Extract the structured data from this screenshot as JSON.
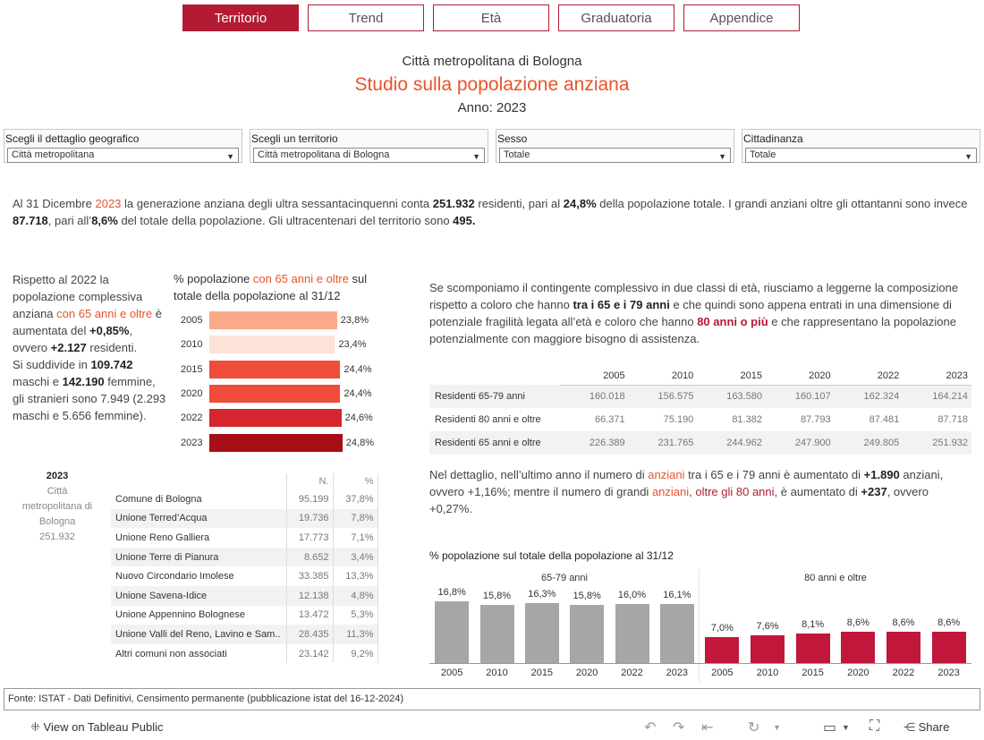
{
  "tabs": [
    {
      "label": "Territorio",
      "active": true
    },
    {
      "label": "Trend",
      "active": false
    },
    {
      "label": "Età",
      "active": false
    },
    {
      "label": "Graduatoria",
      "active": false
    },
    {
      "label": "Appendice",
      "active": false
    }
  ],
  "header": {
    "org": "Città metropolitana di Bologna",
    "title": "Studio sulla popolazione anziana",
    "year_label": "Anno: 2023"
  },
  "filters": [
    {
      "label": "Scegli il dettaglio geografico",
      "value": "Città metropolitana"
    },
    {
      "label": "Scegli un territorio",
      "value": "Città metropolitana di Bologna"
    },
    {
      "label": "Sesso",
      "value": "Totale"
    },
    {
      "label": "Cittadinanza",
      "value": "Totale"
    }
  ],
  "intro": {
    "t1": "Al 31 Dicembre ",
    "year": "2023",
    "t2": " la generazione anziana degli ultra sessantacinquenni conta ",
    "n1": "251.932",
    "t3": " residenti, pari al ",
    "p1": "24,8%",
    "t4": " della popolazione  totale. I grandi anziani oltre gli ottantanni sono invece ",
    "n2": "87.718",
    "t5": ", pari all’",
    "p2": "8,6%",
    "t6": " del totale della popolazione. Gli ultracentenari del territorio sono ",
    "n3": "495."
  },
  "left_text": {
    "a": "Rispetto al 2022 la popolazione complessiva anziana ",
    "b": "con 65 anni e oltre",
    "c": " è aumentata del ",
    "d": "+0,85%",
    "e": ", ovvero ",
    "f": "+2.127",
    "g": " residenti.",
    "h": "Si suddivide in ",
    "i": "109.742",
    "j": " maschi e ",
    "k": "142.190",
    "l": " femmine, gli stranieri sono 7.949 (2.293 maschi e 5.656 femmine)."
  },
  "right_text": {
    "a": "Se scomponiamo il contingente complessivo in due classi di età, riusciamo a leggerne la composizione rispetto a coloro che hanno ",
    "b": "tra i 65 e i 79 anni",
    "c": " e che quindi sono appena entrati in una dimensione di potenziale fragilità legata all’età e coloro che hanno ",
    "d": "80 anni o più",
    "e": " e che rappresentano la popolazione potenzialmente con maggiore bisogno di assistenza."
  },
  "detail_text": {
    "a": "Nel dettaglio, nell’ultimo anno il numero di ",
    "b": "anziani",
    "c": " tra i 65 e i 79 anni",
    "d": " è aumentato di ",
    "e": "+1.890",
    "f": " anziani, ovvero +1,16%; mentre il numero di grandi ",
    "g": "anziani",
    "h": ", oltre gli 80 anni",
    "i": ", è aumentato di ",
    "j": "+237",
    "k": ", ovvero +0,27%."
  },
  "residents_table": {
    "years": [
      "2005",
      "2010",
      "2015",
      "2020",
      "2022",
      "2023"
    ],
    "rows": [
      {
        "label": "Residenti 65-79 anni",
        "values": [
          "160.018",
          "156.575",
          "163.580",
          "160.107",
          "162.324",
          "164.214"
        ]
      },
      {
        "label": "Residenti 80 anni e oltre",
        "values": [
          "66.371",
          "75.190",
          "81.382",
          "87.793",
          "87.481",
          "87.718"
        ]
      },
      {
        "label": "Residenti 65 anni e oltre",
        "values": [
          "226.389",
          "231.765",
          "244.962",
          "247.900",
          "249.805",
          "251.932"
        ]
      }
    ]
  },
  "rank_table": {
    "year": "2023",
    "territory": "Città metropolitana di Bologna",
    "total": "251.932",
    "col_n": "N.",
    "col_p": "%",
    "rows": [
      {
        "name": "Comune di Bologna",
        "n": "95.199",
        "p": "37,8%"
      },
      {
        "name": "Unione Terred’Acqua",
        "n": "19.736",
        "p": "7,8%"
      },
      {
        "name": "Unione Reno Galliera",
        "n": "17.773",
        "p": "7,1%"
      },
      {
        "name": "Unione Terre di Pianura",
        "n": "8.652",
        "p": "3,4%"
      },
      {
        "name": "Nuovo Circondario Imolese",
        "n": "33.385",
        "p": "13,3%"
      },
      {
        "name": "Unione Savena-Idice",
        "n": "12.138",
        "p": "4,8%"
      },
      {
        "name": "Unione Appennino Bolognese",
        "n": "13.472",
        "p": "5,3%"
      },
      {
        "name": "Unione Valli del Reno, Lavino e Sam..",
        "n": "28.435",
        "p": "11,3%"
      },
      {
        "name": "Altri comuni non associati",
        "n": "23.142",
        "p": "9,2%"
      }
    ]
  },
  "chart_data": [
    {
      "type": "bar",
      "orientation": "horizontal",
      "title": "% popolazione con 65 anni e oltre sul totale della popolazione al 31/12",
      "title_parts": {
        "a": "% popolazione ",
        "b": "con 65 anni e oltre",
        "c": " sul totale della popolazione al 31/12"
      },
      "categories": [
        "2005",
        "2010",
        "2015",
        "2020",
        "2022",
        "2023"
      ],
      "values": [
        23.8,
        23.4,
        24.4,
        24.4,
        24.6,
        24.8
      ],
      "labels": [
        "23,8%",
        "23,4%",
        "24,4%",
        "24,4%",
        "24,6%",
        "24,8%"
      ],
      "colors": [
        "#fca98a",
        "#fde2d8",
        "#ef4c3a",
        "#ef4c3a",
        "#d4262c",
        "#a50f15"
      ],
      "xlim": [
        0,
        25
      ]
    },
    {
      "type": "bar",
      "title": "% popolazione sul totale della popolazione al 31/12",
      "panels": [
        {
          "name": "65-79 anni",
          "color": "#a6a6a6",
          "categories": [
            "2005",
            "2010",
            "2015",
            "2020",
            "2022",
            "2023"
          ],
          "values": [
            16.8,
            15.8,
            16.3,
            15.8,
            16.0,
            16.1
          ],
          "labels": [
            "16,8%",
            "15,8%",
            "16,3%",
            "15,8%",
            "16,0%",
            "16,1%"
          ]
        },
        {
          "name": "80 anni e oltre",
          "color": "#c0173a",
          "categories": [
            "2005",
            "2010",
            "2015",
            "2020",
            "2022",
            "2023"
          ],
          "values": [
            7.0,
            7.6,
            8.1,
            8.6,
            8.6,
            8.6
          ],
          "labels": [
            "7,0%",
            "7,6%",
            "8,1%",
            "8,6%",
            "8,6%",
            "8,6%"
          ]
        }
      ],
      "ylim": [
        0,
        17.5
      ]
    }
  ],
  "footer": {
    "source": "Fonte: ISTAT - Dati Definitivi, Censimento permanente (pubblicazione istat del 16-12-2024)"
  },
  "toolbar": {
    "view_label": "View on Tableau Public",
    "share_label": "Share"
  }
}
